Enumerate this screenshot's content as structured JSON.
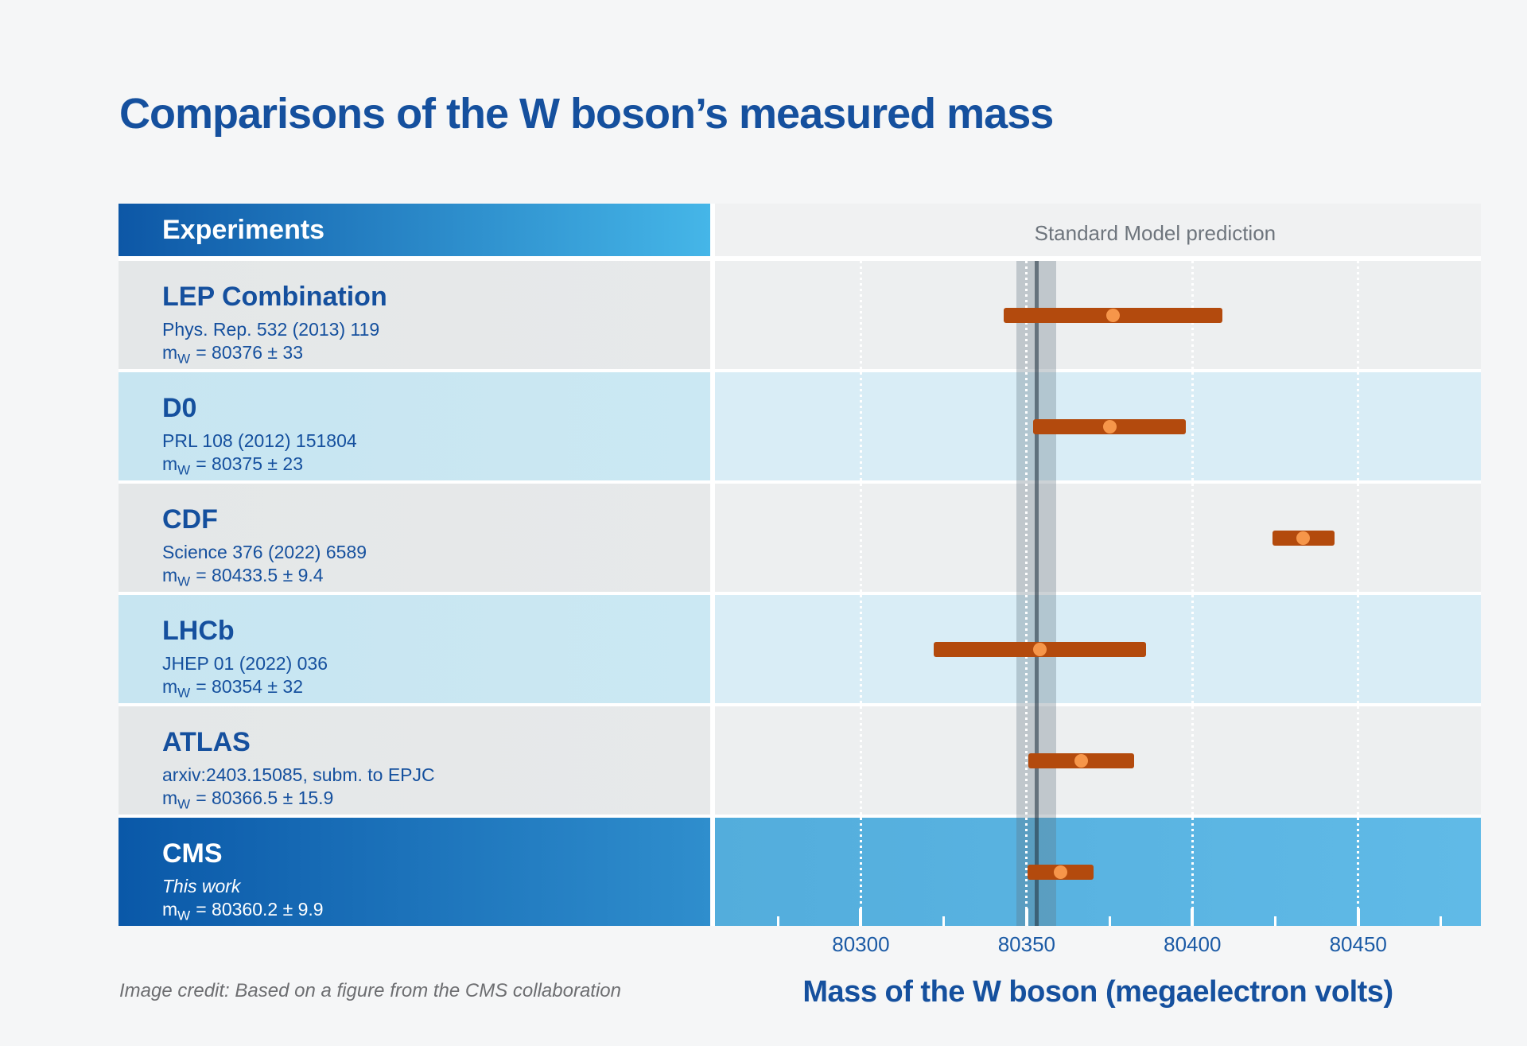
{
  "page": {
    "credit": "Image credit: Based on a figure from the CMS collaboration"
  },
  "table": {
    "header_label": "Experiments"
  },
  "colors": {
    "page-bg": "#f5f6f7",
    "title-blue": "#15509e",
    "hdr-g1": "#0d57a6",
    "hdr-g2": "#45b6e8",
    "chart-hdr-bg": "#f0f1f2",
    "gray-left": "#e7e9ea",
    "gray-chart": "#edeff0",
    "blue-left": "#cbe8f3",
    "blue-chart": "#d9edf6",
    "cms-g1": "#0a58a8",
    "cms-g2": "#2f8ecd",
    "bar": "#b34a0d",
    "marker": "#f6964a",
    "sm-band": "rgba(95,115,128,0.32)",
    "sm-line": "rgba(40,56,70,0.6)",
    "sm-label-gray": "#6e757d",
    "credit-gray": "#6d6e71"
  },
  "chart_data": {
    "type": "scatter",
    "subtype": "horizontal-errorbar",
    "title": "Comparisons of the W boson’s measured mass",
    "xlabel": "Mass of the W boson (megaelectron volts)",
    "xlim": [
      80256,
      80487
    ],
    "x_major_ticks": [
      80300,
      80350,
      80400,
      80450
    ],
    "x_major_tick_labels": [
      "80300",
      "80350",
      "80400",
      "80450"
    ],
    "x_minor_ticks": [
      80275,
      80325,
      80375,
      80425,
      80475
    ],
    "grid": "white dotted vertical lines at major ticks",
    "sm_band": {
      "label": "Standard Model prediction",
      "min": 80347,
      "max": 80359,
      "center": 80353
    },
    "points": [
      {
        "experiment": "LEP Combination",
        "reference": "Phys. Rep. 532 (2013) 119",
        "mass": 80376,
        "uncertainty": 33,
        "mass_symbol": "m",
        "mass_subscript": "W",
        "mass_text": "= 80376 ± 33"
      },
      {
        "experiment": "D0",
        "reference": "PRL 108 (2012) 151804",
        "mass": 80375,
        "uncertainty": 23,
        "mass_symbol": "m",
        "mass_subscript": "W",
        "mass_text": "= 80375 ± 23"
      },
      {
        "experiment": "CDF",
        "reference": "Science 376 (2022) 6589",
        "mass": 80433.5,
        "uncertainty": 9.4,
        "mass_symbol": "m",
        "mass_subscript": "W",
        "mass_text": "= 80433.5 ± 9.4"
      },
      {
        "experiment": "LHCb",
        "reference": "JHEP 01 (2022) 036",
        "mass": 80354,
        "uncertainty": 32,
        "mass_symbol": "m",
        "mass_subscript": "W",
        "mass_text": "= 80354 ± 32"
      },
      {
        "experiment": "ATLAS",
        "reference": "arxiv:2403.15085, subm. to EPJC",
        "mass": 80366.5,
        "uncertainty": 15.9,
        "mass_symbol": "m",
        "mass_subscript": "W",
        "mass_text": "= 80366.5 ± 15.9"
      },
      {
        "experiment": "CMS",
        "reference": "This work",
        "reference_italic": true,
        "highlight": true,
        "mass": 80360.2,
        "uncertainty": 9.9,
        "mass_symbol": "m",
        "mass_subscript": "W",
        "mass_text": "= 80360.2 ± 9.9"
      }
    ]
  }
}
